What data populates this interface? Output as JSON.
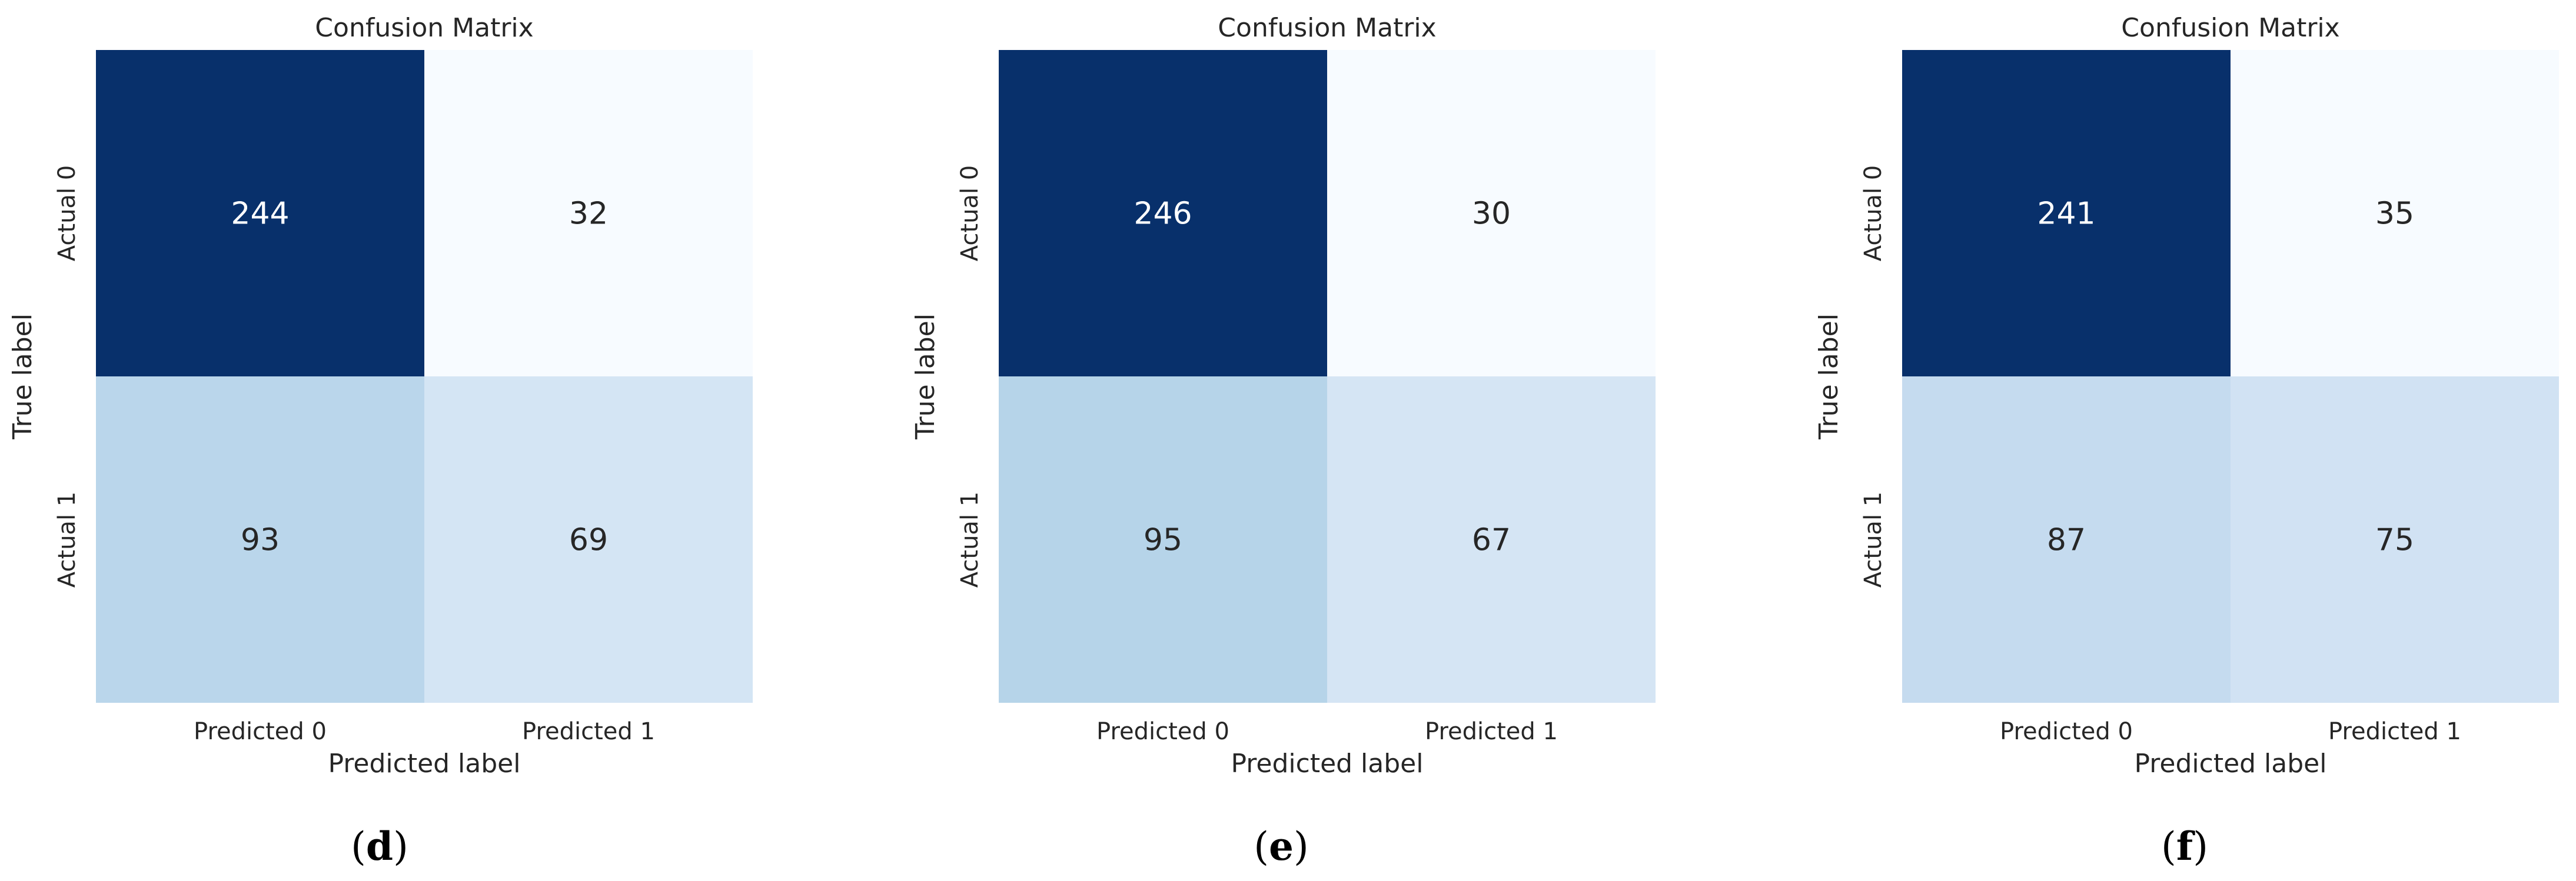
{
  "chart_data": [
    {
      "type": "heatmap",
      "title": "Confusion Matrix",
      "xlabel": "Predicted label",
      "ylabel": "True label",
      "x_categories": [
        "Predicted 0",
        "Predicted 1"
      ],
      "y_categories": [
        "Actual 0",
        "Actual 1"
      ],
      "values": [
        [
          244,
          32
        ],
        [
          93,
          69
        ]
      ],
      "colormap": "Blues",
      "colorbar": false,
      "subfigure": {
        "open": "(",
        "letter": "d",
        "close": ")"
      }
    },
    {
      "type": "heatmap",
      "title": "Confusion Matrix",
      "xlabel": "Predicted label",
      "ylabel": "True label",
      "x_categories": [
        "Predicted 0",
        "Predicted 1"
      ],
      "y_categories": [
        "Actual 0",
        "Actual 1"
      ],
      "values": [
        [
          246,
          30
        ],
        [
          95,
          67
        ]
      ],
      "colormap": "Blues",
      "colorbar": false,
      "subfigure": {
        "open": "(",
        "letter": "e",
        "close": ")"
      }
    },
    {
      "type": "heatmap",
      "title": "Confusion Matrix",
      "xlabel": "Predicted label",
      "ylabel": "True label",
      "x_categories": [
        "Predicted 0",
        "Predicted 1"
      ],
      "y_categories": [
        "Actual 0",
        "Actual 1"
      ],
      "values": [
        [
          241,
          35
        ],
        [
          87,
          75
        ]
      ],
      "colormap": "Blues",
      "colorbar": false,
      "subfigure": {
        "open": "(",
        "letter": "f",
        "close": ")"
      }
    }
  ]
}
